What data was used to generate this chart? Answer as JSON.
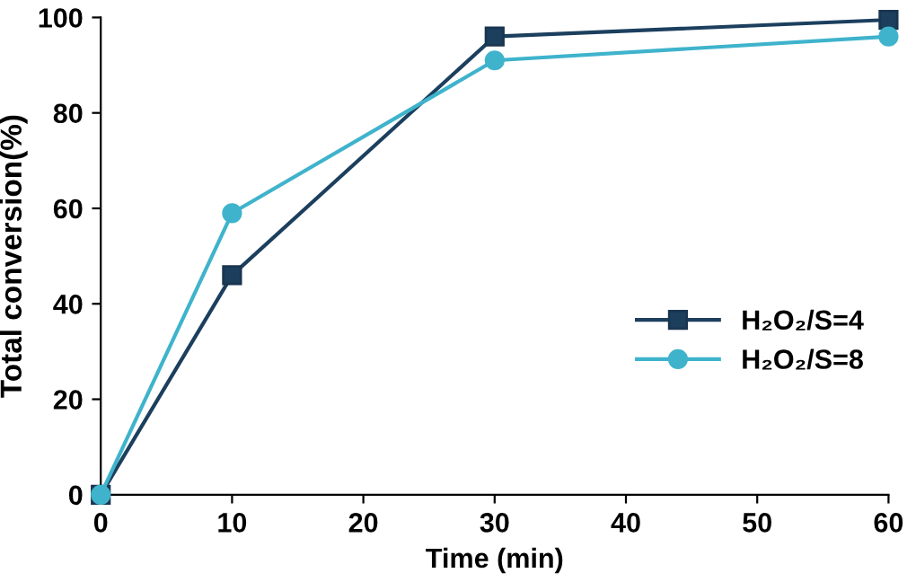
{
  "chart_data": {
    "type": "line",
    "xlabel": "Time (min)",
    "ylabel": "Total conversion(%)",
    "x": [
      0,
      10,
      30,
      60
    ],
    "series": [
      {
        "name": "H₂O₂/S=4",
        "color": "#1c3f5e",
        "marker": "square",
        "values": [
          0,
          46,
          96,
          99.5
        ]
      },
      {
        "name": "H₂O₂/S=8",
        "color": "#3fb3cc",
        "marker": "circle",
        "values": [
          0,
          59,
          91,
          96
        ]
      }
    ],
    "xlim": [
      0,
      60
    ],
    "ylim": [
      0,
      100
    ],
    "xticks": [
      0,
      10,
      20,
      30,
      40,
      50,
      60
    ],
    "yticks": [
      0,
      20,
      40,
      60,
      80,
      100
    ],
    "grid": false,
    "legend": "right",
    "line_style": "solid"
  }
}
